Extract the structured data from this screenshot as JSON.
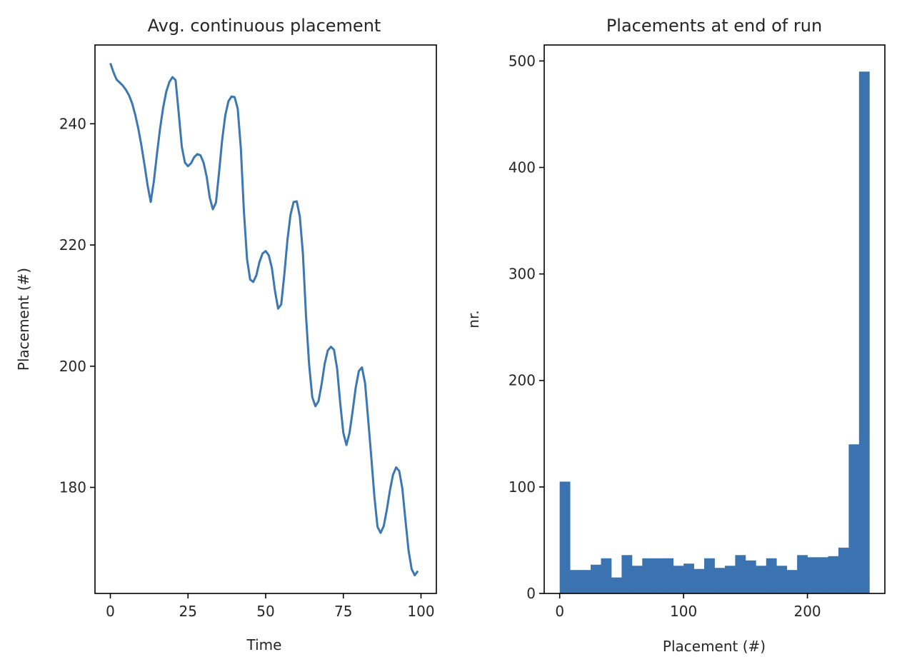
{
  "chart_data": [
    {
      "type": "line",
      "title": "Avg. continuous placement",
      "xlabel": "Time",
      "ylabel": "Placement (#)",
      "xlim": [
        -4.95,
        104.95
      ],
      "ylim": [
        162.5,
        253.0
      ],
      "xticks": [
        0,
        25,
        50,
        75,
        100
      ],
      "yticks": [
        180,
        200,
        220,
        240
      ],
      "color": "#3a77b4",
      "grid": false,
      "series": [
        {
          "x": [
            0,
            1,
            2,
            3,
            4,
            5,
            6,
            7,
            8,
            9,
            10,
            11,
            12,
            13,
            14,
            15,
            16,
            17,
            18,
            19,
            20,
            21,
            22,
            23,
            24,
            25,
            26,
            27,
            28,
            29,
            30,
            31,
            32,
            33,
            34,
            35,
            36,
            37,
            38,
            39,
            40,
            41,
            42,
            43,
            44,
            45,
            46,
            47,
            48,
            49,
            50,
            51,
            52,
            53,
            54,
            55,
            56,
            57,
            58,
            59,
            60,
            61,
            62,
            63,
            64,
            65,
            66,
            67,
            68,
            69,
            70,
            71,
            72,
            73,
            74,
            75,
            76,
            77,
            78,
            79,
            80,
            81,
            82,
            83,
            84,
            85,
            86,
            87,
            88,
            89,
            90,
            91,
            92,
            93,
            94,
            95,
            96,
            97,
            98,
            99
          ],
          "y": [
            250.0,
            248.5,
            247.3,
            246.8,
            246.3,
            245.6,
            244.7,
            243.4,
            241.5,
            239.2,
            236.4,
            233.2,
            229.8,
            227.1,
            230.5,
            235.0,
            239.2,
            242.7,
            245.3,
            246.9,
            247.7,
            247.2,
            241.8,
            236.2,
            233.6,
            233.0,
            233.5,
            234.5,
            235.0,
            234.8,
            233.6,
            231.3,
            227.8,
            225.9,
            227.0,
            232.0,
            237.4,
            241.4,
            243.7,
            244.5,
            244.4,
            242.5,
            236.0,
            225.5,
            217.7,
            214.3,
            213.9,
            215.0,
            217.2,
            218.6,
            219.0,
            218.3,
            216.2,
            212.4,
            209.5,
            210.2,
            215.1,
            220.8,
            225.0,
            227.1,
            227.2,
            224.7,
            218.5,
            208.2,
            200.2,
            194.9,
            193.4,
            194.2,
            197.0,
            200.4,
            202.6,
            203.2,
            202.7,
            199.6,
            193.9,
            189.0,
            187.0,
            189.0,
            192.6,
            196.5,
            199.2,
            199.8,
            197.2,
            191.2,
            185.0,
            178.5,
            173.5,
            172.5,
            173.6,
            176.3,
            179.5,
            182.1,
            183.3,
            182.7,
            179.8,
            174.6,
            169.6,
            166.5,
            165.5,
            166.2
          ]
        }
      ]
    },
    {
      "type": "bar",
      "title": "Placements at end of run",
      "xlabel": "Placement (#)",
      "ylabel": "nr.",
      "xlim": [
        -12.5,
        262.5
      ],
      "ylim": [
        0,
        515
      ],
      "xticks": [
        0,
        100,
        200
      ],
      "yticks": [
        0,
        100,
        200,
        300,
        400,
        500
      ],
      "color": "#3a73af",
      "grid": false,
      "bin_width": 8.333,
      "bin_start": 0,
      "values": [
        105,
        22,
        22,
        27,
        33,
        15,
        36,
        26,
        33,
        33,
        33,
        26,
        28,
        23,
        33,
        24,
        26,
        36,
        31,
        26,
        33,
        26,
        22,
        36,
        34,
        34,
        35,
        43,
        140,
        490
      ]
    }
  ]
}
